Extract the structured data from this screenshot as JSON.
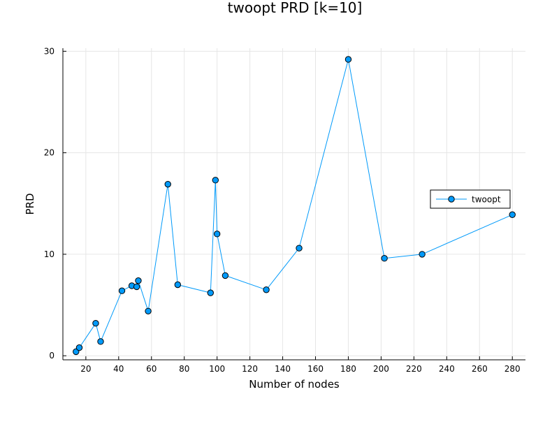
{
  "chart_data": {
    "type": "line",
    "title": "twoopt PRD [k=10]",
    "xlabel": "Number of nodes",
    "ylabel": "PRD",
    "xlim": [
      6,
      288
    ],
    "ylim": [
      -0.4,
      30.3
    ],
    "xticks": [
      20,
      40,
      60,
      80,
      100,
      120,
      140,
      160,
      180,
      200,
      220,
      240,
      260,
      280
    ],
    "yticks": [
      0,
      10,
      20,
      30
    ],
    "grid": true,
    "legend_position": "right",
    "series": [
      {
        "name": "twoopt",
        "color": "#009AFA",
        "marker": "circle",
        "x": [
          14,
          16,
          26,
          29,
          42,
          48,
          51,
          52,
          58,
          70,
          76,
          96,
          99,
          100,
          105,
          130,
          150,
          180,
          202,
          225,
          280
        ],
        "y": [
          0.4,
          0.8,
          3.2,
          1.4,
          6.4,
          6.9,
          6.8,
          7.4,
          4.4,
          16.9,
          7.0,
          6.2,
          17.3,
          12.0,
          7.9,
          6.5,
          10.6,
          29.2,
          9.6,
          10.0,
          13.9
        ]
      }
    ]
  }
}
